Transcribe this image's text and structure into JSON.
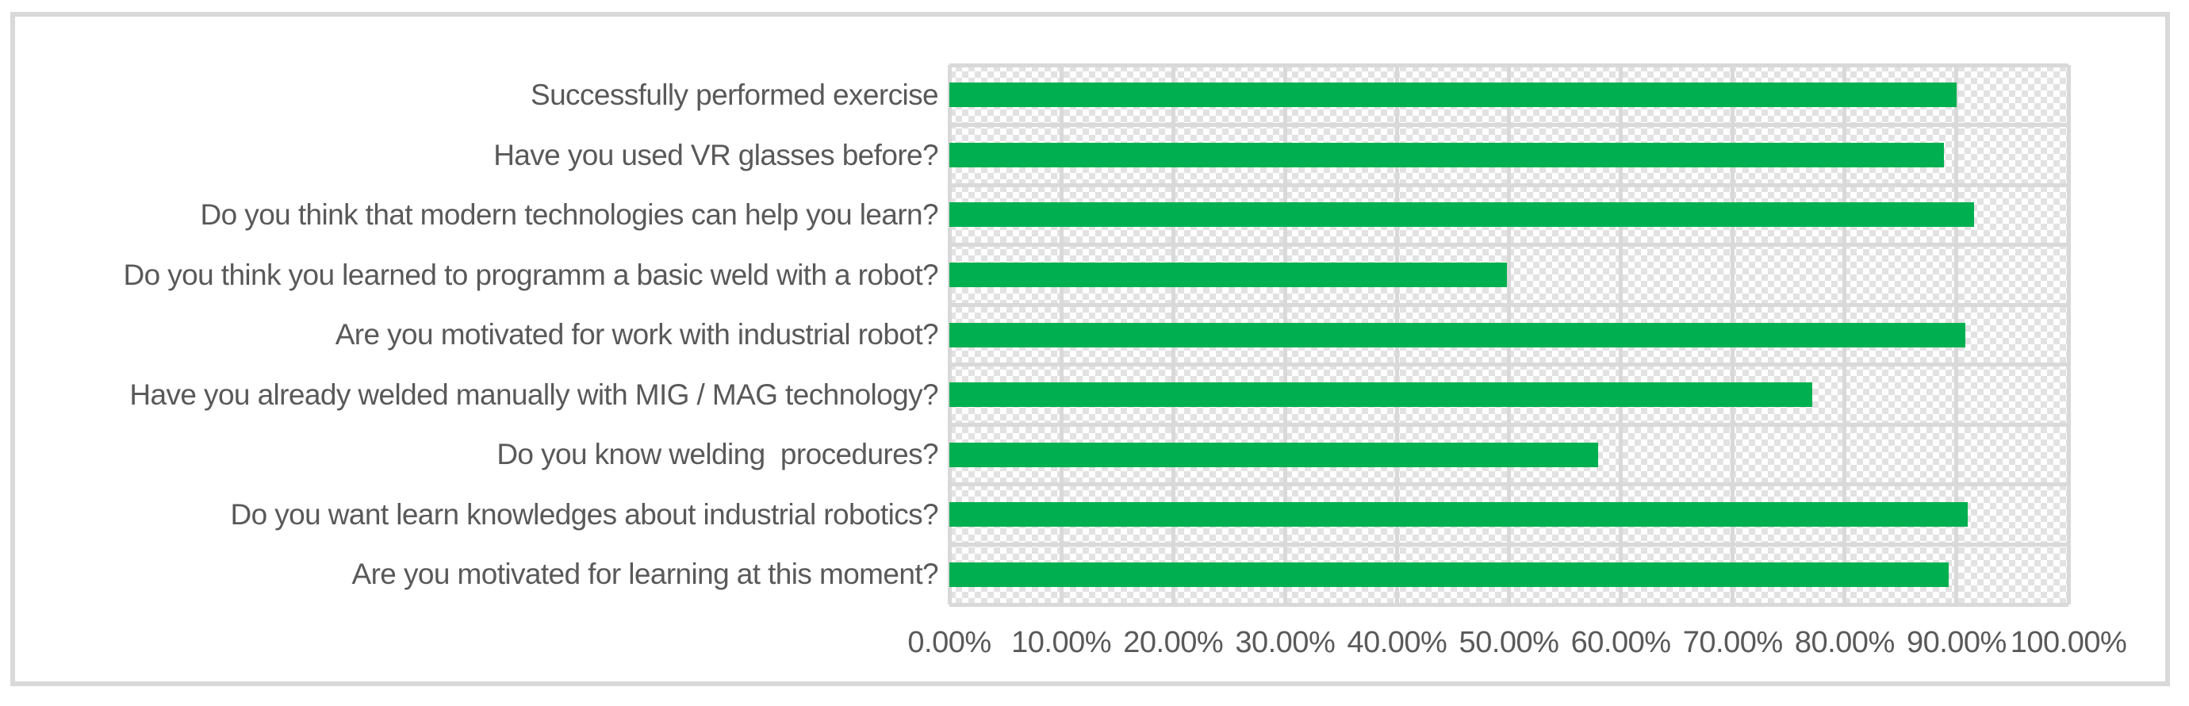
{
  "figure": {
    "title": "",
    "legend": "none",
    "border_color": "#D9D9D9",
    "background_color": "#FFFFFF"
  },
  "chart_data": {
    "type": "bar",
    "orientation": "horizontal",
    "title": "",
    "xlabel": "",
    "ylabel": "",
    "categories": [
      "Successfully performed exercise",
      "Have you used VR glasses before?",
      "Do you think that modern technologies can help you learn?",
      "Do you think you learned to programm a basic weld with a robot?",
      "Are you motivated for work with industrial robot?",
      "Have you already welded manually with MIG / MAG technology?",
      "Do you know welding  procedures?",
      "Do you want learn knowledges about industrial robotics?",
      "Are you motivated for learning at this moment?"
    ],
    "values": [
      90,
      88.9,
      91.6,
      49.8,
      90.8,
      77.1,
      58,
      91,
      89.3
    ],
    "value_unit": "%",
    "xlim": [
      0,
      100
    ],
    "x_tick_labels": [
      "0.00%",
      "10.00%",
      "20.00%",
      "30.00%",
      "40.00%",
      "50.00%",
      "60.00%",
      "70.00%",
      "80.00%",
      "90.00%",
      "100.00%"
    ],
    "grid": "horizontal-and-vertical",
    "plot_area_fill": "light-gray-diagonal-hatch-pattern",
    "bar_color": "#00B050",
    "gridline_color": "#D9D9D9",
    "tick_label_color": "#595959",
    "category_label_color": "#595959",
    "legend_position": "none"
  }
}
